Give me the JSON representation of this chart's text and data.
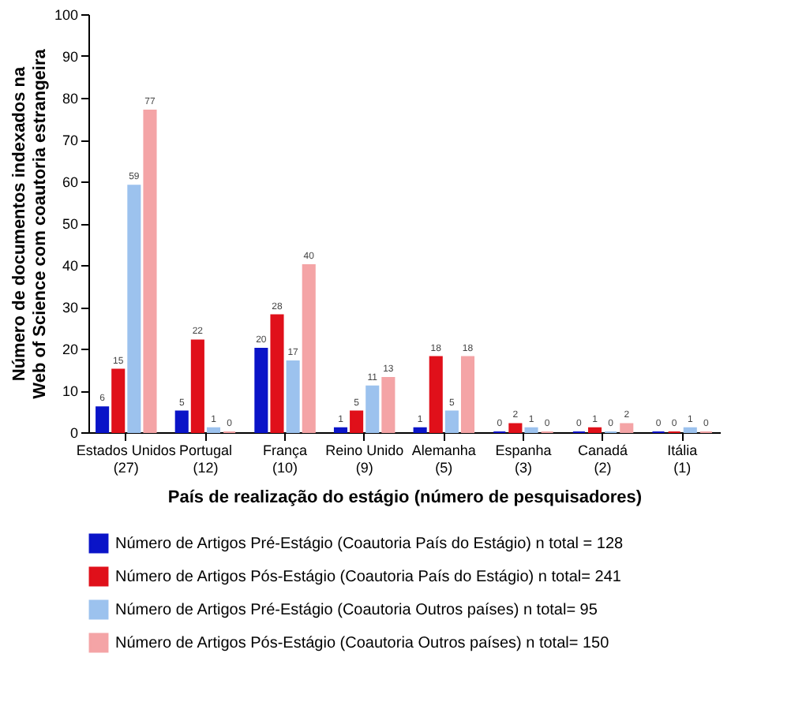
{
  "chart_data": {
    "type": "bar",
    "xlabel": "País de realização do estágio (número de pesquisadores)",
    "ylabel": "Número de documentos indexados na\nWeb of Science com coautoria estrangeira",
    "categories": [
      "Estados Unidos\n(27)",
      "Portugal\n(12)",
      "França\n(10)",
      "Reino Unido\n(9)",
      "Alemanha\n(5)",
      "Espanha\n(3)",
      "Canadá\n(2)",
      "Itália\n(1)"
    ],
    "series": [
      {
        "name": "Número de Artigos Pré-Estágio (Coautoria País do Estágio) n total = 128",
        "color": "#0a14c8",
        "values": [
          6,
          5,
          20,
          1,
          1,
          0,
          0,
          0
        ]
      },
      {
        "name": "Número de Artigos Pós-Estágio (Coautoria País do Estágio) n total= 241",
        "color": "#e0101a",
        "values": [
          15,
          22,
          28,
          5,
          18,
          2,
          1,
          0
        ]
      },
      {
        "name": "Número de Artigos Pré-Estágio (Coautoria Outros países) n total= 95",
        "color": "#9cc2ee",
        "values": [
          59,
          1,
          17,
          11,
          5,
          1,
          0,
          1
        ]
      },
      {
        "name": "Número de Artigos Pós-Estágio (Coautoria Outros países) n total= 150",
        "color": "#f4a4a6",
        "values": [
          77,
          0,
          40,
          13,
          18,
          0,
          2,
          0
        ]
      }
    ],
    "ylim": [
      0,
      100
    ],
    "yticks": [
      0,
      10,
      20,
      30,
      40,
      50,
      60,
      70,
      80,
      90,
      100
    ],
    "grid": false,
    "legend": "bottom",
    "data_labels": true
  }
}
